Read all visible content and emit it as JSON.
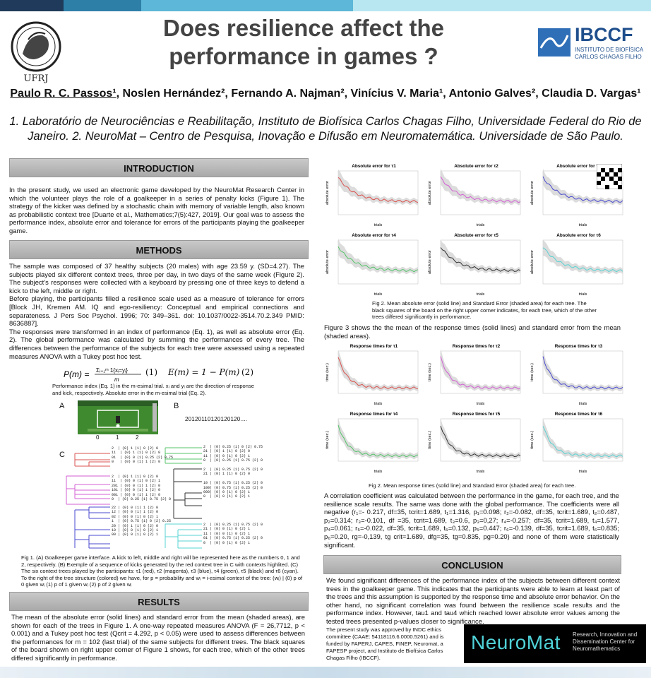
{
  "header": {
    "title_line1": "Does resilience affect the",
    "title_line2": "performance in games ?",
    "authors_first": "Paulo R. C. Passos¹",
    "authors_rest": ", Noslen Hernández², Fernando A. Najman², Vinícius V. Maria¹, Antonio Galves², Claudia D. Vargas¹",
    "affiliations": "1. Laboratório de Neurociências e Reabilitação, Instituto de Biofísica Carlos Chagas Filho, Universidade Federal do Rio de Janeiro. 2. NeuroMat – Centro de Pesquisa, Inovação e Difusão em Neuromatemática. Universidade de São Paulo.",
    "ufrj_label": "UFRJ",
    "ibccf_label": "IBCCF",
    "ibccf_sub1": "INSTITUTO DE BIOFÍSICA",
    "ibccf_sub2": "CARLOS CHAGAS FILHO"
  },
  "intro": {
    "heading": "INTRODUCTION",
    "text": "In the present study, we used an electronic game developed by the NeuroMat Research Center in which the volunteer plays the role of a goalkeeper in a series of penalty kicks (Figure 1). The strategy of the kicker was defined by a stochastic chain with memory of variable length, also known as probabilistic context tree [Duarte et al., Mathematics;7(5):427, 2019]. Our goal was to assess the performance index, absolute error and tolerance for errors of the participants playing the goalkeeper game."
  },
  "methods": {
    "heading": "METHODS",
    "p1": "The sample was composed of 37 healthy subjects (20 males) with age 23.59 y. (SD=4.27). The subjects played six different context trees, three per day, in two days of the same week (Figure 2). The subject’s responses were collected with a keyboard by pressing one of three keys to defend a kick to the left, middle or right.",
    "p2": "Before playing, the participants filled a resilience scale used as a measure of tolerance for errors [Block JH, Kremen AM. IQ and ego-resiliency: Conceptual and empirical connections and separateness. J Pers Soc Psychol. 1996; 70: 349–361. doi: 10.1037/0022-3514.70.2.349 PMID: 8636887].",
    "p3": "The responses were transformed in an index of performance  (Eq. 1), as well as absolute error (Eq. 2). The global performance was calculated by summing the performances of every tree. The differences between the performance of the subjects for each tree were assessed using a repeated measures ANOVA with a Tukey post hoc test.",
    "eq1_label": "(1)",
    "eq2": "E(m) = 1 − P(m)",
    "eq2_label": "(2)",
    "eq_caption": "Performance index (Eq. 1) in the m-esimal trial. xᵢ and yᵢ are the direction of response and kick, respectively.  Absolute error in the m-esimal trial (Eq. 2).",
    "panel_a": "A",
    "panel_b": "B",
    "panel_c": "C",
    "goal_labels": [
      "0",
      "1",
      "2"
    ],
    "sequence": "20120110120120120....",
    "fig1_caption": "Fig 1. (A) Goalkeeper game interface. A kick to left, middle and right will be represented here as the numbers 0, 1 and 2, respectively. (B) Exemple of a sequence of kicks generated by the red context tree in C with contexts highlited. (C) The six context trees  played by the participants: τ1 (red), τ2 (magenta), τ3 (blue), τ4 (green), τ5 (black) and τ6 (cyan). To the right of the tree structure (colored) we have, for p = probability and wᵢ = i-esimal context of the tree: (wᵢ) | (0) p of 0 given wᵢ (1) p of 1 given wᵢ (2) p of 2 given wᵢ"
  },
  "results": {
    "heading": "RESULTS",
    "text": "The mean of the absolute error (solid lines) and standard error from the mean (shaded areas), are shown for each of the trees in Figure 1. A one-way repeated measures ANOVA  (F = 26,7712, p < 0.001) and a Tukey post hoc test (Qcrit = 4.292, p < 0.05)  were used to assess differences between the performances for m = 102 (last trial) of the same subjects for different trees. The black squares of the board shown on right upper corner of Figure 1 shows, for each tree,  which of the other trees differed significantly in performance."
  },
  "fig2": {
    "titles": [
      "Absolute error for τ1",
      "Absolute error for τ2",
      "Absolute error for τ3",
      "Absolute error for τ4",
      "Absolute error for τ5",
      "Absolute error for τ6"
    ],
    "ylabel": "absolute error",
    "xlabel": "trials",
    "caption": "Fig 2. Mean absolute error (solid line) and Standard Error (shaded area) for each tree. The black squares of the board on the right upper corner indicates, for each tree, which of the other trees differed significantly in performance."
  },
  "fig3": {
    "intro": "Figure 3 shows the the mean of the response times (solid lines) and standard error from the mean (shaded areas).",
    "titles": [
      "Response times for τ1",
      "Response times for τ2",
      "Response times for τ3",
      "Response times for τ4",
      "Response times for τ5",
      "Response times for τ6"
    ],
    "ylabel": "time (sec.)",
    "xlabel": "trials",
    "caption": "Fig 2. Mean response times (solid line) and Standard Error (shaded area) for each tree."
  },
  "correlation_text": "A correlation coefficient was calculated between the performance in the game, for each tree, and the resilience scale results. The same was done with the global performance. The coefficients were all negative (r₁=- 0.217, df=35, tcrit=1.689, t₁=1.316, p₁=0.098; r₂=-0.082, df=35, tcrit=1.689, t₂=0.487, p₂=0.314; r₃=-0.101, df =35, tcrit=1.689, t₃=0.6, p₃=0,27; r₄=-0.257; df=35, tcrit=1.689, t₄=1.577, p₄=0.061; r₅=-0.022, df=35, tcrit=1.689, t₅=0.132, p₅=0.447; r₆=-0.139, df=35, tcrit=1.689, t₆=0.835; p₆=0.20, rg=-0,139, tg crit=1.689, dfg=35, tg=0.835, pg=0.20) and none of them were statistically significant.",
  "conclusion": {
    "heading": "CONCLUSION",
    "text": "We found significant differences of the performance index of the subjects between different context trees in the goalkeeper game. This indicates that the participants were able to learn at least part of the trees and this assumption is supported by the  response time and absolute error behavior. On the other hand, no significant correlation was found between the resilience scale results and the performance index. However, tau1 and tau4 which reached lower absolute error values among the tested trees presented p-values closer to significance.",
    "ethics": "The present study was approved by INDC ethics committee (CAAE: 54118116.6.0000.5261) and is funded by FAPERJ, CAPES, FINEP, Neuromat, a FAPESP project, and Instituto de Biofísica Carlos Chagas Filho (IBCCF).",
    "neuromat_logo": "NeuroMat",
    "neuromat_tag1": "Research, Innovation and",
    "neuromat_tag2": "Dissemination Center for",
    "neuromat_tag3": "Neuromathematics"
  },
  "colors": {
    "tau1": "#d9534f",
    "tau2": "#d35fd3",
    "tau3": "#4a4ad0",
    "tau4": "#55c46a",
    "tau5": "#333333",
    "tau6": "#5ad3d3"
  }
}
